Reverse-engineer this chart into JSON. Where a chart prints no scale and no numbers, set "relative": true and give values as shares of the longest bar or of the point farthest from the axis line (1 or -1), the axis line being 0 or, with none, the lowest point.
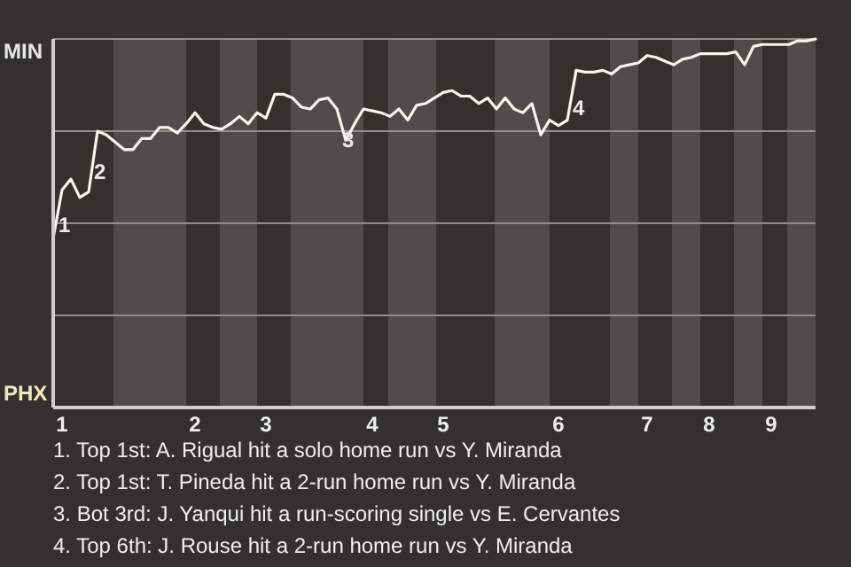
{
  "chart_data": {
    "type": "line",
    "categories": [
      null,
      "1",
      null,
      null,
      null,
      null,
      null,
      null,
      null,
      null,
      null,
      null,
      null,
      null,
      null,
      null,
      "2",
      null,
      null,
      null,
      null,
      null,
      null,
      null,
      "3",
      null,
      null,
      null,
      null,
      null,
      null,
      null,
      null,
      null,
      null,
      null,
      "4",
      null,
      null,
      null,
      null,
      null,
      null,
      null,
      "5",
      null,
      null,
      null,
      null,
      null,
      null,
      null,
      null,
      null,
      null,
      null,
      null,
      "6",
      null,
      null,
      null,
      null,
      null,
      null,
      null,
      null,
      null,
      "7",
      null,
      null,
      null,
      null,
      null,
      null,
      "8",
      null,
      null,
      null,
      null,
      null,
      null,
      "9",
      null,
      null,
      null,
      null,
      null
    ],
    "series": [
      {
        "color": "#f7f5ea",
        "values": [
          0.46,
          0.59,
          0.62,
          0.57,
          0.585,
          0.75,
          0.74,
          0.72,
          0.7,
          0.7,
          0.73,
          0.73,
          0.76,
          0.76,
          0.745,
          0.77,
          0.8,
          0.77,
          0.76,
          0.755,
          0.77,
          0.79,
          0.77,
          0.8,
          0.785,
          0.85,
          0.85,
          0.84,
          0.815,
          0.81,
          0.835,
          0.84,
          0.81,
          0.725,
          0.77,
          0.81,
          0.805,
          0.8,
          0.79,
          0.81,
          0.78,
          0.82,
          0.825,
          0.84,
          0.855,
          0.86,
          0.845,
          0.845,
          0.825,
          0.84,
          0.81,
          0.84,
          0.81,
          0.8,
          0.825,
          0.74,
          0.78,
          0.765,
          0.78,
          0.915,
          0.91,
          0.91,
          0.915,
          0.905,
          0.925,
          0.93,
          0.935,
          0.955,
          0.95,
          0.94,
          0.93,
          0.945,
          0.95,
          0.96,
          0.96,
          0.96,
          0.96,
          0.965,
          0.93,
          0.98,
          0.985,
          0.985,
          0.985,
          0.985,
          0.995,
          0.995,
          1.0
        ]
      }
    ],
    "relative": true,
    "marker": "none",
    "ref_lines": [
      {
        "axis": "y",
        "value": 0.25,
        "color": "#8f8e8a"
      },
      {
        "axis": "y",
        "value": 0.5,
        "color": "#8f8e8a"
      },
      {
        "axis": "y",
        "value": 0.75,
        "color": "#8f8e8a"
      },
      {
        "axis": "y",
        "value": 1,
        "color": "#8f8e8a"
      }
    ],
    "annotations": [
      "MIN",
      "PHX",
      "1",
      "2",
      "3",
      "4",
      "1. Top 1st: A. Rigual hit a solo home run vs Y. Miranda",
      "2. Top 1st: T. Pineda hit a 2-run home run vs Y. Miranda",
      "3. Bot 3rd: J. Yanqui hit a run-scoring single vs E. Cervantes",
      "4. Top 6th: J. Rouse hit a 2-run home run vs Y. Miranda"
    ]
  }
}
